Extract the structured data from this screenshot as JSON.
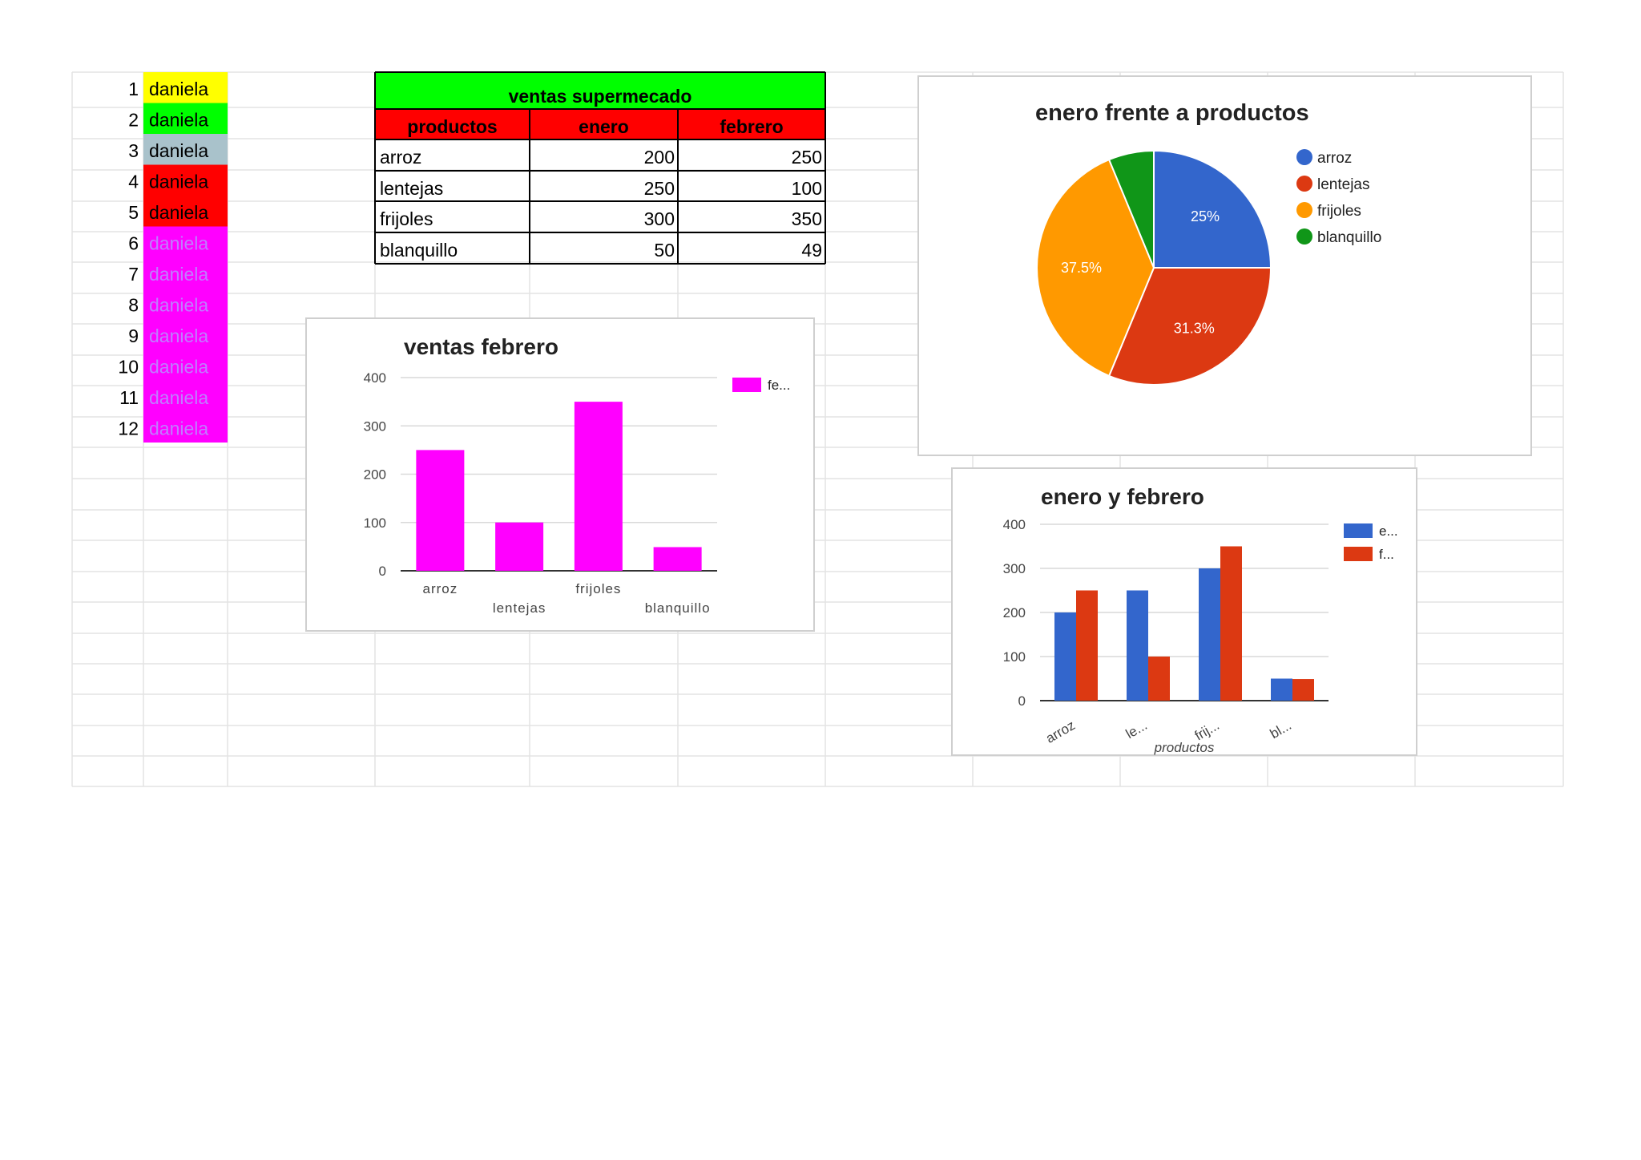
{
  "names_list": {
    "rows": [
      {
        "num": "1",
        "name": "daniela",
        "bg": "#ffff00",
        "fg": "#000000"
      },
      {
        "num": "2",
        "name": "daniela",
        "bg": "#00ff00",
        "fg": "#000000"
      },
      {
        "num": "3",
        "name": "daniela",
        "bg": "#a9c2cb",
        "fg": "#000000"
      },
      {
        "num": "4",
        "name": "daniela",
        "bg": "#ff0000",
        "fg": "#000000"
      },
      {
        "num": "5",
        "name": "daniela",
        "bg": "#ff0000",
        "fg": "#000000"
      },
      {
        "num": "6",
        "name": "daniela",
        "bg": "#ff00ff",
        "fg": "#c07dff"
      },
      {
        "num": "7",
        "name": "daniela",
        "bg": "#ff00ff",
        "fg": "#c07dff"
      },
      {
        "num": "8",
        "name": "daniela",
        "bg": "#ff00ff",
        "fg": "#c07dff"
      },
      {
        "num": "9",
        "name": "daniela",
        "bg": "#ff00ff",
        "fg": "#c07dff"
      },
      {
        "num": "10",
        "name": "daniela",
        "bg": "#ff00ff",
        "fg": "#c07dff"
      },
      {
        "num": "11",
        "name": "daniela",
        "bg": "#ff00ff",
        "fg": "#c07dff"
      },
      {
        "num": "12",
        "name": "daniela",
        "bg": "#ff00ff",
        "fg": "#c07dff"
      }
    ]
  },
  "sales_table": {
    "title": "ventas supermecado",
    "title_bg": "#00ff00",
    "header_bg": "#ff0000",
    "headers": [
      "productos",
      "enero",
      "febrero"
    ],
    "rows": [
      [
        "arroz",
        "200",
        "250"
      ],
      [
        "lentejas",
        "250",
        "100"
      ],
      [
        "frijoles",
        "300",
        "350"
      ],
      [
        "blanquillo",
        "50",
        "49"
      ]
    ]
  },
  "colors": {
    "magenta": "#ff00ff",
    "blue": "#3366cc",
    "red": "#dc3912",
    "orange": "#ff9900",
    "green": "#109618",
    "grid": "#d9d9d9",
    "sheet_grid": "#e3e3e3"
  },
  "chart_data": [
    {
      "type": "bar",
      "title": "ventas febrero",
      "categories": [
        "arroz",
        "lentejas",
        "frijoles",
        "blanquillo"
      ],
      "series": [
        {
          "name": "fe...",
          "values": [
            250,
            100,
            350,
            49
          ],
          "color": "#ff00ff"
        }
      ],
      "yticks": [
        "0",
        "100",
        "200",
        "300",
        "400"
      ],
      "ylim": [
        0,
        400
      ],
      "grid": true,
      "legend": "right"
    },
    {
      "type": "pie",
      "title": "enero frente a productos",
      "categories": [
        "arroz",
        "lentejas",
        "frijoles",
        "blanquillo"
      ],
      "values": [
        200,
        250,
        300,
        50
      ],
      "slice_labels": [
        "25%",
        "31.3%",
        "37.5%",
        ""
      ],
      "colors": [
        "#3366cc",
        "#dc3912",
        "#ff9900",
        "#109618"
      ],
      "legend": "right"
    },
    {
      "type": "bar",
      "title": "enero y febrero",
      "categories": [
        "arroz",
        "le...",
        "frij...",
        "bl..."
      ],
      "xlabel": "productos",
      "series": [
        {
          "name": "e...",
          "values": [
            200,
            250,
            300,
            50
          ],
          "color": "#3366cc"
        },
        {
          "name": "f...",
          "values": [
            250,
            100,
            350,
            49
          ],
          "color": "#dc3912"
        }
      ],
      "yticks": [
        "0",
        "100",
        "200",
        "300",
        "400"
      ],
      "ylim": [
        0,
        400
      ],
      "grid": true,
      "legend": "right"
    }
  ]
}
